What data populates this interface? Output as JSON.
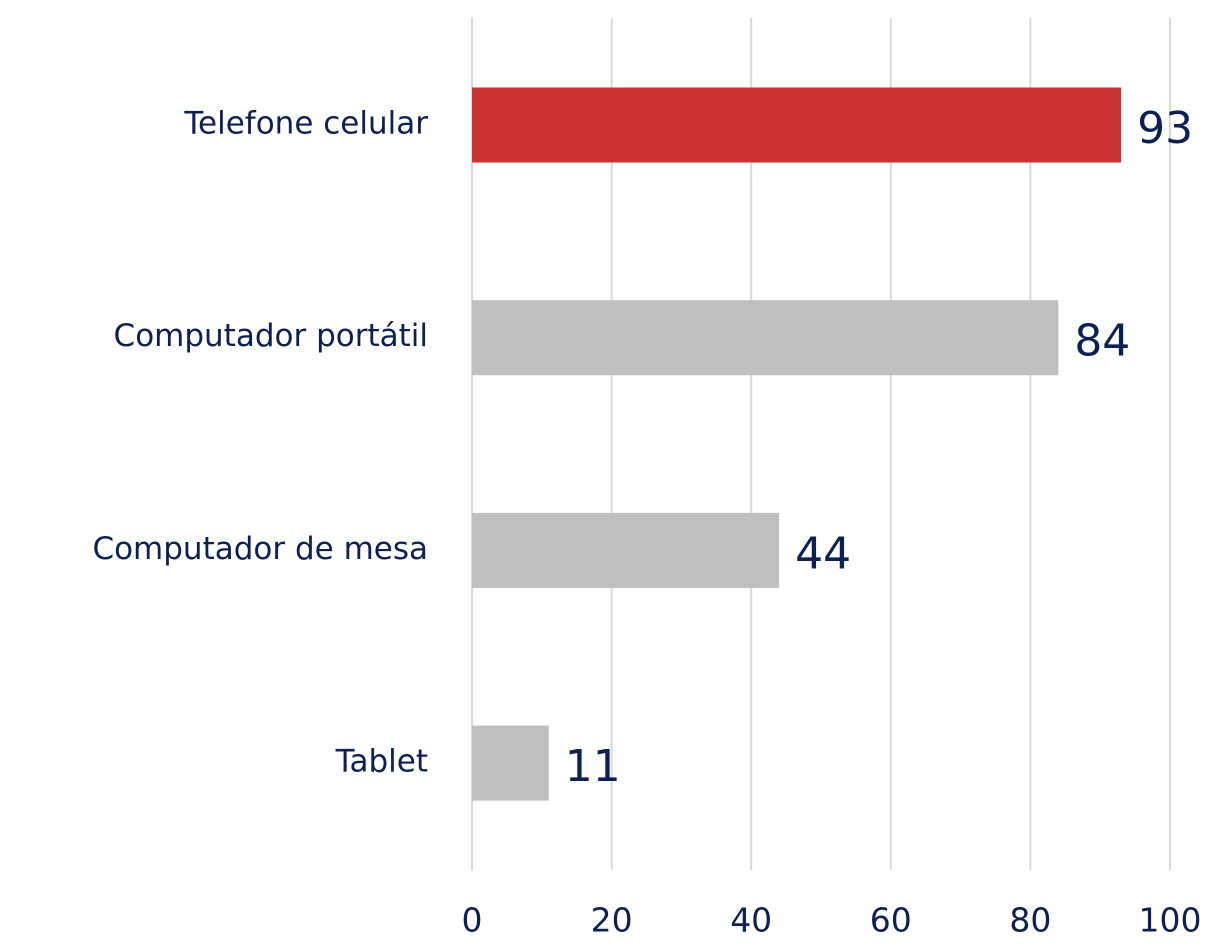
{
  "chart_data": {
    "type": "barh",
    "categories": [
      "Telefone celular",
      "Computador portátil",
      "Computador de mesa",
      "Tablet"
    ],
    "values": [
      93,
      84,
      44,
      11
    ],
    "colors": [
      "#c83232",
      "#bfbfbf",
      "#bfbfbf",
      "#bfbfbf"
    ],
    "xlim": [
      0,
      100
    ],
    "xticks": [
      0,
      20,
      40,
      60,
      80,
      100
    ],
    "grid": true
  }
}
